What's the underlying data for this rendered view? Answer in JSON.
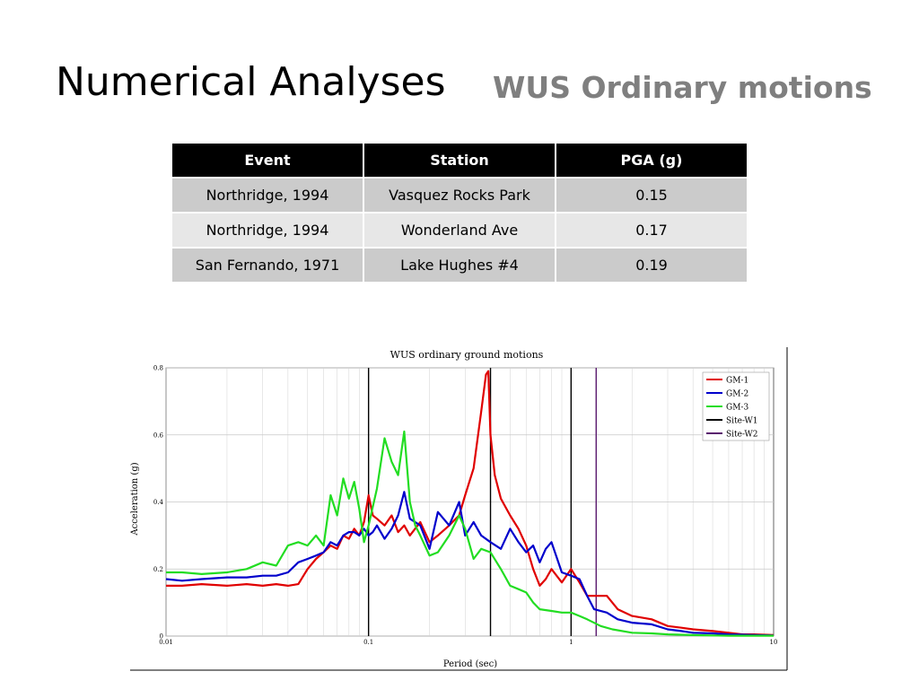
{
  "slide": {
    "title": "Numerical Analyses",
    "subtitle": "WUS Ordinary motions"
  },
  "table": {
    "headers": [
      "Event",
      "Station",
      "PGA (g)"
    ],
    "rows": [
      [
        "Northridge, 1994",
        "Vasquez Rocks Park",
        "0.15"
      ],
      [
        "Northridge, 1994",
        "Wonderland Ave",
        "0.17"
      ],
      [
        "San Fernando, 1971",
        "Lake Hughes #4",
        "0.19"
      ]
    ]
  },
  "chart_data": {
    "type": "line",
    "title": "WUS ordinary ground motions",
    "xlabel": "Period (sec)",
    "ylabel": "Acceleration (g)",
    "xscale": "log",
    "xlim": [
      0.01,
      10
    ],
    "ylim": [
      0,
      0.8
    ],
    "xticks": [
      0.01,
      0.1,
      1,
      10
    ],
    "xtick_labels": [
      "0.01",
      "0.1",
      "1",
      "10"
    ],
    "yticks": [
      0,
      0.2,
      0.4,
      0.6,
      0.8
    ],
    "ytick_labels": [
      "0",
      "0.2",
      "0.4",
      "0.6",
      "0.8"
    ],
    "grid": true,
    "legend_position": "top-right",
    "series": [
      {
        "name": "GM-1",
        "color": "#e00000",
        "x": [
          0.01,
          0.012,
          0.015,
          0.02,
          0.025,
          0.03,
          0.035,
          0.04,
          0.045,
          0.05,
          0.055,
          0.06,
          0.065,
          0.07,
          0.075,
          0.08,
          0.085,
          0.09,
          0.095,
          0.1,
          0.105,
          0.11,
          0.12,
          0.13,
          0.14,
          0.15,
          0.16,
          0.18,
          0.2,
          0.22,
          0.25,
          0.28,
          0.3,
          0.33,
          0.36,
          0.38,
          0.39,
          0.4,
          0.42,
          0.45,
          0.5,
          0.55,
          0.6,
          0.65,
          0.7,
          0.75,
          0.8,
          0.9,
          1.0,
          1.1,
          1.2,
          1.3,
          1.5,
          1.7,
          2.0,
          2.5,
          3.0,
          3.5,
          4.0,
          5.0,
          6.0,
          7.0,
          8.0,
          10.0
        ],
        "y": [
          0.15,
          0.15,
          0.155,
          0.15,
          0.155,
          0.15,
          0.155,
          0.15,
          0.155,
          0.2,
          0.23,
          0.25,
          0.27,
          0.26,
          0.3,
          0.29,
          0.32,
          0.3,
          0.34,
          0.42,
          0.36,
          0.35,
          0.33,
          0.36,
          0.31,
          0.33,
          0.3,
          0.34,
          0.28,
          0.3,
          0.33,
          0.36,
          0.42,
          0.5,
          0.67,
          0.78,
          0.79,
          0.6,
          0.48,
          0.41,
          0.36,
          0.32,
          0.27,
          0.2,
          0.15,
          0.17,
          0.2,
          0.16,
          0.2,
          0.16,
          0.12,
          0.12,
          0.12,
          0.08,
          0.06,
          0.05,
          0.03,
          0.025,
          0.02,
          0.015,
          0.01,
          0.005,
          0.005,
          0.003
        ]
      },
      {
        "name": "GM-2",
        "color": "#0000cc",
        "x": [
          0.01,
          0.012,
          0.015,
          0.02,
          0.025,
          0.03,
          0.035,
          0.04,
          0.045,
          0.05,
          0.055,
          0.06,
          0.065,
          0.07,
          0.075,
          0.08,
          0.085,
          0.09,
          0.095,
          0.1,
          0.105,
          0.11,
          0.12,
          0.13,
          0.14,
          0.15,
          0.16,
          0.18,
          0.2,
          0.22,
          0.25,
          0.28,
          0.3,
          0.33,
          0.36,
          0.4,
          0.45,
          0.5,
          0.55,
          0.6,
          0.65,
          0.7,
          0.75,
          0.8,
          0.9,
          1.0,
          1.1,
          1.2,
          1.3,
          1.5,
          1.7,
          2.0,
          2.5,
          3.0,
          3.5,
          4.0,
          5.0,
          6.0,
          7.0,
          8.0,
          10.0
        ],
        "y": [
          0.17,
          0.165,
          0.17,
          0.175,
          0.175,
          0.18,
          0.18,
          0.19,
          0.22,
          0.23,
          0.24,
          0.25,
          0.28,
          0.27,
          0.3,
          0.31,
          0.31,
          0.3,
          0.32,
          0.3,
          0.31,
          0.33,
          0.29,
          0.32,
          0.36,
          0.43,
          0.35,
          0.33,
          0.26,
          0.37,
          0.33,
          0.4,
          0.3,
          0.34,
          0.3,
          0.28,
          0.26,
          0.32,
          0.28,
          0.25,
          0.27,
          0.22,
          0.26,
          0.28,
          0.19,
          0.18,
          0.17,
          0.12,
          0.08,
          0.07,
          0.05,
          0.04,
          0.035,
          0.02,
          0.015,
          0.01,
          0.008,
          0.005,
          0.004,
          0.003,
          0.002
        ]
      },
      {
        "name": "GM-3",
        "color": "#22dd22",
        "x": [
          0.01,
          0.012,
          0.015,
          0.02,
          0.025,
          0.03,
          0.035,
          0.04,
          0.045,
          0.05,
          0.055,
          0.06,
          0.065,
          0.07,
          0.075,
          0.08,
          0.085,
          0.09,
          0.095,
          0.1,
          0.11,
          0.12,
          0.13,
          0.14,
          0.15,
          0.16,
          0.17,
          0.18,
          0.2,
          0.22,
          0.25,
          0.28,
          0.3,
          0.33,
          0.36,
          0.4,
          0.45,
          0.5,
          0.55,
          0.6,
          0.65,
          0.7,
          0.8,
          0.9,
          1.0,
          1.1,
          1.2,
          1.4,
          1.6,
          2.0,
          2.5,
          3.0,
          4.0,
          5.0,
          6.0,
          8.0,
          10.0
        ],
        "y": [
          0.19,
          0.19,
          0.185,
          0.19,
          0.2,
          0.22,
          0.21,
          0.27,
          0.28,
          0.27,
          0.3,
          0.27,
          0.42,
          0.36,
          0.47,
          0.41,
          0.46,
          0.38,
          0.28,
          0.33,
          0.44,
          0.59,
          0.52,
          0.48,
          0.61,
          0.4,
          0.33,
          0.3,
          0.24,
          0.25,
          0.3,
          0.36,
          0.32,
          0.23,
          0.26,
          0.25,
          0.2,
          0.15,
          0.14,
          0.13,
          0.1,
          0.08,
          0.075,
          0.07,
          0.07,
          0.06,
          0.05,
          0.03,
          0.02,
          0.01,
          0.008,
          0.005,
          0.003,
          0.002,
          0.001,
          0.001,
          0.001
        ]
      }
    ],
    "reference_lines": [
      {
        "name": "Site-W1",
        "color": "#000000",
        "x": [
          0.1,
          0.4,
          1.0
        ]
      },
      {
        "name": "Site-W2",
        "color": "#5a1a6e",
        "x": [
          1.33
        ]
      }
    ]
  }
}
